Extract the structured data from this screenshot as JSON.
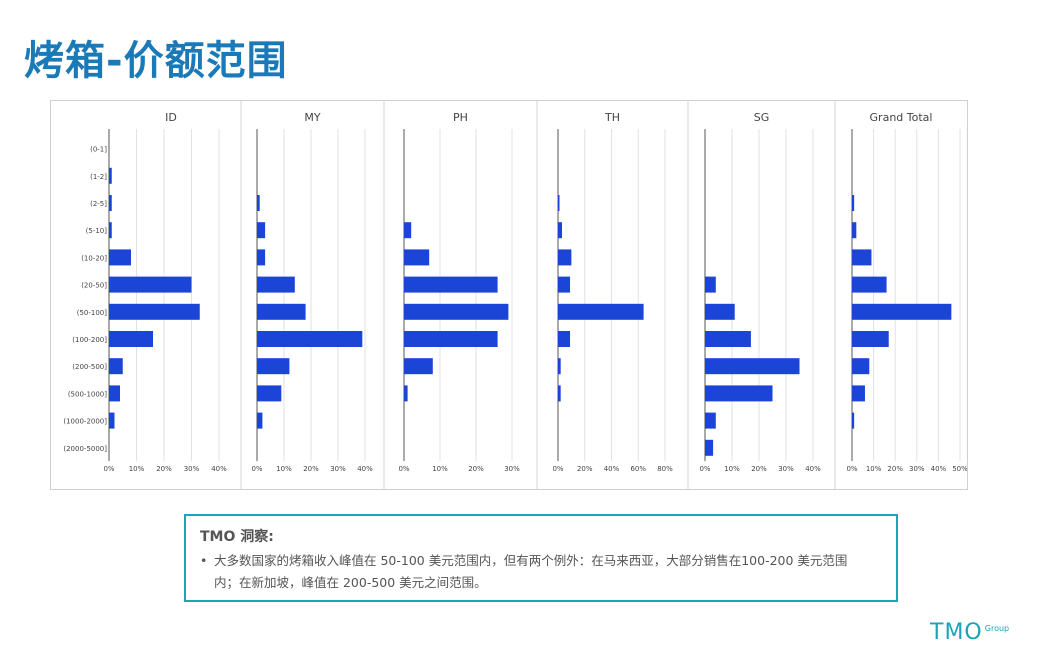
{
  "page": {
    "title": "烤箱-价额范围"
  },
  "chart_data": {
    "type": "bar",
    "orientation": "horizontal",
    "categories": [
      "(0-1]",
      "(1-2]",
      "(2-5]",
      "(5-10]",
      "(10-20]",
      "(20-50]",
      "(50-100]",
      "(100-200]",
      "(200-500]",
      "(500-1000]",
      "(1000-2000]",
      "(2000-5000]"
    ],
    "bar_color": "#1a45d6",
    "grid": true,
    "panels": [
      {
        "name": "ID",
        "ticks": [
          "0%",
          "10%",
          "20%",
          "30%",
          "40%"
        ],
        "xlim": [
          0,
          40
        ],
        "values": [
          0,
          1,
          1,
          1,
          8,
          30,
          33,
          16,
          5,
          4,
          2,
          0
        ]
      },
      {
        "name": "MY",
        "ticks": [
          "0%",
          "10%",
          "20%",
          "30%",
          "40%"
        ],
        "xlim": [
          0,
          40
        ],
        "values": [
          0,
          0,
          1,
          3,
          3,
          14,
          18,
          39,
          12,
          9,
          2,
          0
        ]
      },
      {
        "name": "PH",
        "ticks": [
          "0%",
          "10%",
          "20%",
          "30%"
        ],
        "xlim": [
          0,
          30
        ],
        "values": [
          0,
          0,
          0,
          2,
          7,
          26,
          29,
          26,
          8,
          1,
          0,
          0
        ]
      },
      {
        "name": "TH",
        "ticks": [
          "0%",
          "20%",
          "40%",
          "60%",
          "80%"
        ],
        "xlim": [
          0,
          80
        ],
        "values": [
          0,
          0,
          1,
          3,
          10,
          9,
          64,
          9,
          2,
          2,
          0,
          0
        ]
      },
      {
        "name": "SG",
        "ticks": [
          "0%",
          "10%",
          "20%",
          "30%",
          "40%"
        ],
        "xlim": [
          0,
          40
        ],
        "values": [
          0,
          0,
          0,
          0,
          0,
          4,
          11,
          17,
          35,
          25,
          4,
          3
        ]
      },
      {
        "name": "Grand Total",
        "ticks": [
          "0%",
          "10%",
          "20%",
          "30%",
          "40%",
          "50%"
        ],
        "xlim": [
          0,
          50
        ],
        "values": [
          0,
          0,
          1,
          2,
          9,
          16,
          46,
          17,
          8,
          6,
          1,
          0
        ]
      }
    ]
  },
  "insight": {
    "title": "TMO 洞察:",
    "bullet": "•",
    "line1": "大多数国家的烤箱收入峰值在 50-100 美元范围内，但有两个例外：在马来西亚，大部分销售在100-200 美元范围",
    "line2": "内；在新加坡，峰值在 200-500 美元之间范围。"
  },
  "logo": {
    "main": "TMO",
    "sub": "Group"
  }
}
